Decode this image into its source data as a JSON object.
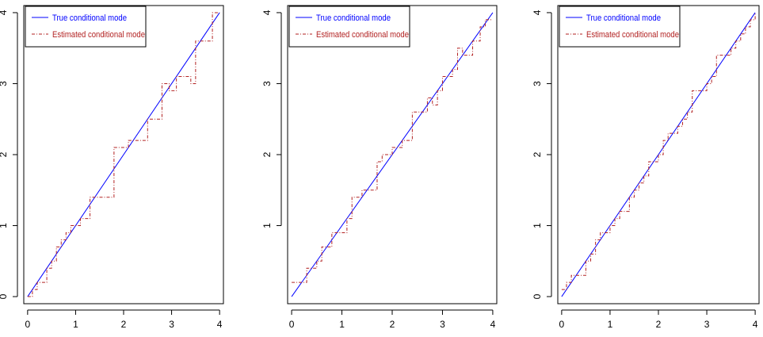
{
  "chart_data": [
    {
      "type": "line",
      "title": "",
      "xlabel": "",
      "ylabel": "",
      "xlim": [
        -0.08,
        4.08
      ],
      "ylim": [
        -0.1,
        4.1
      ],
      "x_ticks": [
        "0",
        "1",
        "2",
        "3",
        "4"
      ],
      "y_ticks": [
        "0",
        "1",
        "2",
        "3",
        "4"
      ],
      "legend_position": "top-left",
      "series": [
        {
          "name": "True conditional mode",
          "color": "#0000ff",
          "style": "solid",
          "x": [
            0,
            4
          ],
          "y": [
            0,
            4
          ]
        },
        {
          "name": "Estimated conditional mode",
          "color": "#b22222",
          "style": "dashed-step",
          "x": [
            0,
            0.1,
            0.2,
            0.4,
            0.5,
            0.6,
            0.7,
            0.8,
            0.9,
            1.0,
            1.1,
            1.3,
            1.4,
            1.7,
            1.8,
            2.0,
            2.1,
            2.4,
            2.5,
            2.7,
            2.8,
            2.95,
            3.1,
            3.4,
            3.5,
            3.75,
            3.85,
            4.0
          ],
          "y": [
            0,
            0.1,
            0.2,
            0.4,
            0.5,
            0.7,
            0.8,
            0.9,
            1.0,
            1.0,
            1.1,
            1.4,
            1.4,
            1.4,
            2.1,
            2.1,
            2.2,
            2.2,
            2.5,
            2.5,
            3.0,
            2.9,
            3.1,
            3.0,
            3.6,
            3.6,
            4.0,
            4.0
          ]
        }
      ]
    },
    {
      "type": "line",
      "title": "",
      "xlabel": "",
      "ylabel": "",
      "xlim": [
        -0.08,
        4.08
      ],
      "ylim": [
        -0.1,
        4.1
      ],
      "x_ticks": [
        "0",
        "1",
        "2",
        "3",
        "4"
      ],
      "y_ticks": [
        "1",
        "2",
        "3",
        "4"
      ],
      "legend_position": "top-left",
      "series": [
        {
          "name": "True conditional mode",
          "color": "#0000ff",
          "style": "solid",
          "x": [
            0,
            4
          ],
          "y": [
            0,
            4
          ]
        },
        {
          "name": "Estimated conditional mode",
          "color": "#b22222",
          "style": "dashed-step",
          "x": [
            0,
            0.2,
            0.3,
            0.5,
            0.6,
            0.8,
            0.9,
            1.1,
            1.2,
            1.25,
            1.4,
            1.5,
            1.7,
            1.8,
            2.0,
            2.2,
            2.3,
            2.4,
            2.6,
            2.7,
            2.8,
            2.9,
            3.0,
            3.2,
            3.3,
            3.4,
            3.6,
            3.75,
            3.85,
            4.0
          ],
          "y": [
            0.2,
            0.2,
            0.4,
            0.5,
            0.7,
            0.9,
            0.9,
            1.1,
            1.4,
            1.4,
            1.5,
            1.5,
            1.9,
            2.0,
            2.1,
            2.2,
            2.2,
            2.6,
            2.6,
            2.8,
            2.7,
            2.9,
            3.1,
            3.2,
            3.5,
            3.4,
            3.6,
            3.8,
            3.9,
            3.9
          ]
        }
      ]
    },
    {
      "type": "line",
      "title": "",
      "xlabel": "",
      "ylabel": "",
      "xlim": [
        -0.08,
        4.08
      ],
      "ylim": [
        -0.1,
        4.1
      ],
      "x_ticks": [
        "0",
        "1",
        "2",
        "3",
        "4"
      ],
      "y_ticks": [
        "0",
        "1",
        "2",
        "3",
        "4"
      ],
      "legend_position": "top-left",
      "series": [
        {
          "name": "True conditional mode",
          "color": "#0000ff",
          "style": "solid",
          "x": [
            0,
            4
          ],
          "y": [
            0,
            4
          ]
        },
        {
          "name": "Estimated conditional mode",
          "color": "#b22222",
          "style": "dashed-step",
          "x": [
            0,
            0.1,
            0.2,
            0.3,
            0.5,
            0.6,
            0.7,
            0.8,
            1.0,
            1.1,
            1.2,
            1.4,
            1.5,
            1.6,
            1.7,
            1.8,
            2.0,
            2.1,
            2.2,
            2.4,
            2.5,
            2.6,
            2.7,
            2.8,
            3.0,
            3.1,
            3.2,
            3.4,
            3.5,
            3.6,
            3.7,
            3.8,
            3.9,
            4.0
          ],
          "y": [
            0.1,
            0.2,
            0.3,
            0.3,
            0.5,
            0.6,
            0.8,
            0.9,
            1.0,
            1.1,
            1.2,
            1.4,
            1.5,
            1.6,
            1.7,
            1.9,
            2.0,
            2.2,
            2.3,
            2.4,
            2.5,
            2.6,
            2.9,
            2.9,
            3.0,
            3.1,
            3.4,
            3.4,
            3.5,
            3.6,
            3.7,
            3.8,
            3.9,
            4.0
          ]
        }
      ]
    }
  ]
}
